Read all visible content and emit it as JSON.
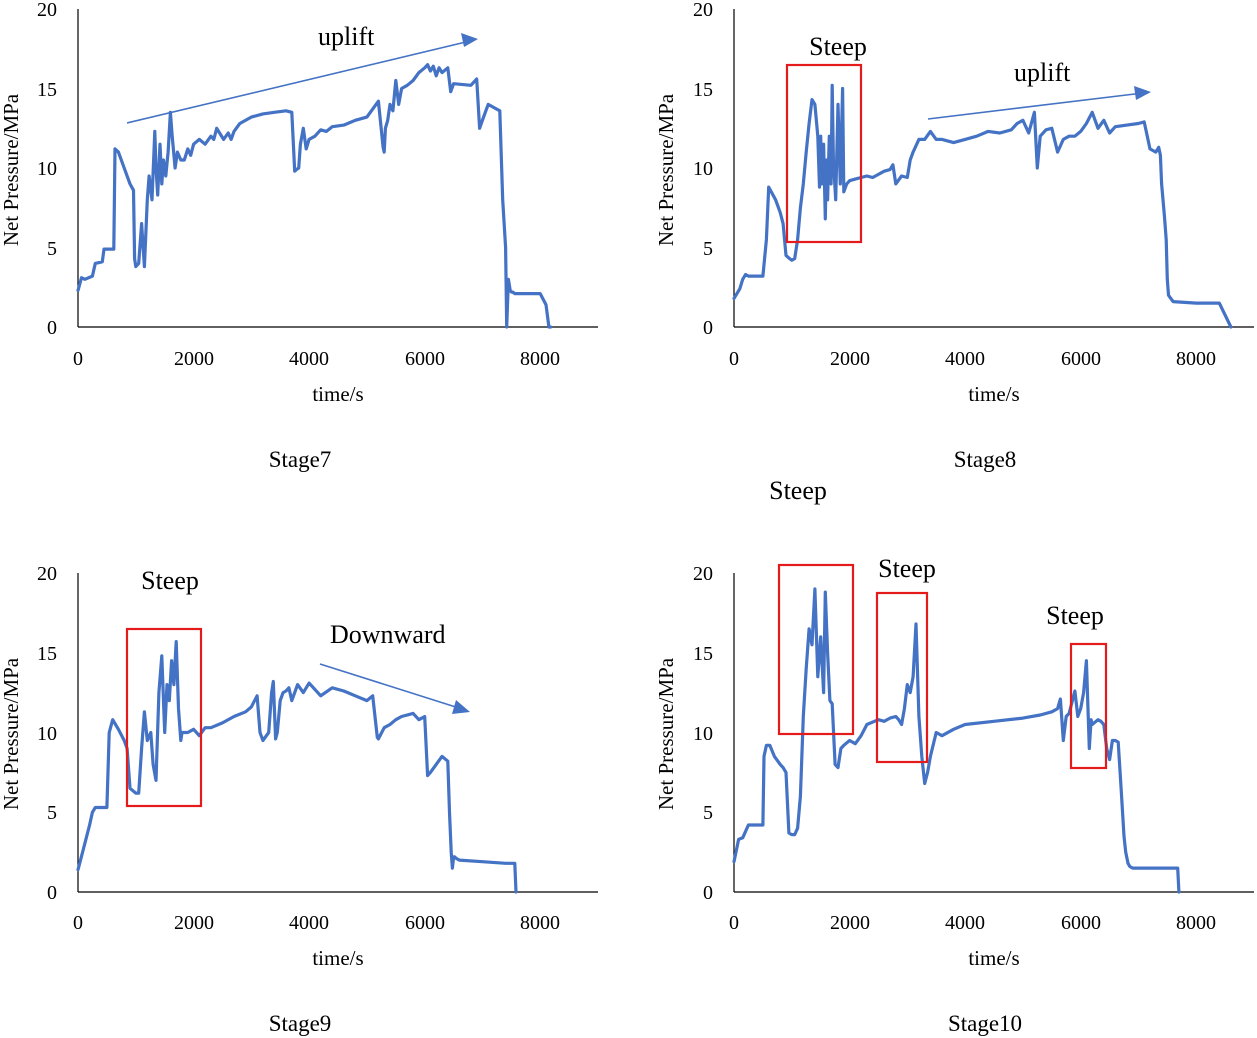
{
  "chart_data": [
    {
      "type": "line",
      "panel_title": "Stage7",
      "xlabel": "time/s",
      "ylabel": "Net Pressure/MPa",
      "xlim": [
        0,
        9000
      ],
      "ylim": [
        0,
        20
      ],
      "xticks": [
        0,
        2000,
        4000,
        6000,
        8000
      ],
      "yticks": [
        0,
        5,
        10,
        15,
        20
      ],
      "grid": false,
      "series": [
        {
          "name": "Net Pressure",
          "color": "#4472C4",
          "x": [
            0,
            60,
            120,
            250,
            300,
            420,
            450,
            620,
            640,
            700,
            800,
            900,
            960,
            980,
            1000,
            1050,
            1100,
            1150,
            1200,
            1230,
            1280,
            1330,
            1350,
            1380,
            1420,
            1450,
            1480,
            1520,
            1560,
            1600,
            1630,
            1680,
            1720,
            1780,
            1840,
            1900,
            1950,
            2000,
            2100,
            2200,
            2300,
            2350,
            2400,
            2450,
            2520,
            2600,
            2650,
            2700,
            2800,
            3000,
            3200,
            3400,
            3600,
            3700,
            3750,
            3780,
            3820,
            3850,
            3900,
            3950,
            4000,
            4100,
            4200,
            4300,
            4400,
            4600,
            4800,
            5000,
            5200,
            5280,
            5300,
            5320,
            5360,
            5400,
            5450,
            5500,
            5550,
            5600,
            5700,
            5800,
            5900,
            6000,
            6050,
            6100,
            6150,
            6200,
            6250,
            6300,
            6400,
            6450,
            6500,
            6800,
            6900,
            6950,
            7000,
            7050,
            7100,
            7200,
            7300,
            7350,
            7400,
            7420,
            7450,
            7480,
            7500,
            7520,
            7560,
            7600,
            8000,
            8100,
            8150,
            8180
          ],
          "y": [
            2.3,
            3.1,
            3.0,
            3.2,
            4.0,
            4.1,
            4.9,
            4.9,
            11.2,
            11.0,
            10.0,
            9.0,
            8.6,
            4.3,
            3.8,
            4.0,
            6.5,
            3.8,
            8.0,
            9.5,
            8.0,
            12.3,
            10.0,
            8.3,
            11.5,
            9.0,
            10.5,
            9.5,
            11.0,
            13.5,
            12.0,
            10.0,
            11.0,
            10.5,
            10.5,
            11.2,
            10.8,
            11.5,
            11.8,
            11.5,
            12.0,
            11.8,
            12.5,
            12.2,
            11.8,
            12.2,
            11.8,
            12.3,
            12.8,
            13.2,
            13.4,
            13.5,
            13.6,
            13.5,
            9.8,
            9.9,
            10.0,
            11.5,
            12.5,
            11.2,
            11.8,
            12.0,
            12.4,
            12.3,
            12.6,
            12.7,
            13.0,
            13.2,
            14.2,
            11.3,
            11.0,
            12.5,
            13.0,
            14.0,
            13.6,
            15.5,
            14.0,
            15.0,
            15.2,
            15.5,
            16.0,
            16.3,
            16.5,
            16.1,
            16.4,
            15.8,
            16.3,
            16.0,
            16.3,
            14.8,
            15.3,
            15.2,
            15.6,
            12.5,
            13.0,
            13.5,
            14.0,
            13.8,
            13.6,
            8.0,
            5.0,
            0.0,
            3.0,
            2.3,
            2.2,
            2.2,
            2.1,
            2.1,
            2.1,
            1.4,
            0.0,
            0.0
          ]
        }
      ],
      "annotations": [
        {
          "text": "uplift",
          "kind": "arrow",
          "from": [
            850,
            12.9
          ],
          "to": [
            7100,
            18.3
          ]
        }
      ],
      "regions": []
    },
    {
      "type": "line",
      "panel_title": "Stage8",
      "xlabel": "time/s",
      "ylabel": "Net Pressure/MPa",
      "xlim": [
        0,
        9000
      ],
      "ylim": [
        0,
        20
      ],
      "xticks": [
        0,
        2000,
        4000,
        6000,
        8000
      ],
      "yticks": [
        0,
        5,
        10,
        15,
        20
      ],
      "grid": false,
      "series": [
        {
          "name": "Net Pressure",
          "color": "#4472C4",
          "x": [
            0,
            100,
            150,
            200,
            250,
            500,
            560,
            600,
            720,
            800,
            850,
            900,
            960,
            1000,
            1050,
            1100,
            1150,
            1200,
            1250,
            1300,
            1350,
            1400,
            1450,
            1480,
            1500,
            1520,
            1550,
            1580,
            1600,
            1620,
            1650,
            1680,
            1700,
            1720,
            1760,
            1800,
            1840,
            1880,
            1900,
            1950,
            2000,
            2100,
            2200,
            2300,
            2400,
            2500,
            2600,
            2700,
            2750,
            2800,
            2900,
            3000,
            3050,
            3100,
            3200,
            3300,
            3400,
            3500,
            3600,
            3800,
            4000,
            4200,
            4400,
            4600,
            4800,
            4900,
            5000,
            5100,
            5200,
            5250,
            5300,
            5400,
            5500,
            5600,
            5700,
            5800,
            5900,
            6000,
            6100,
            6200,
            6300,
            6400,
            6500,
            6600,
            6800,
            7000,
            7100,
            7200,
            7300,
            7350,
            7380,
            7400,
            7450,
            7480,
            7500,
            7520,
            7560,
            7600,
            8000,
            8400,
            8600
          ],
          "y": [
            1.8,
            2.4,
            3.0,
            3.3,
            3.2,
            3.2,
            5.5,
            8.8,
            8.0,
            7.2,
            6.5,
            4.5,
            4.3,
            4.2,
            4.3,
            5.5,
            7.5,
            9.0,
            11.0,
            12.8,
            14.3,
            14.0,
            12.0,
            8.8,
            12.0,
            9.0,
            11.5,
            6.8,
            10.5,
            8.0,
            12.0,
            9.0,
            15.2,
            10.5,
            8.0,
            14.0,
            9.0,
            15.0,
            8.5,
            9.0,
            9.2,
            9.3,
            9.4,
            9.5,
            9.4,
            9.6,
            9.8,
            9.9,
            10.2,
            9.0,
            9.5,
            9.4,
            10.5,
            11.0,
            11.8,
            11.8,
            12.3,
            11.8,
            11.8,
            11.6,
            11.8,
            12.0,
            12.3,
            12.2,
            12.4,
            12.8,
            13.0,
            12.2,
            13.5,
            10.0,
            12.0,
            12.4,
            12.5,
            11.0,
            11.8,
            12.0,
            12.0,
            12.3,
            12.8,
            13.5,
            12.5,
            13.0,
            12.2,
            12.6,
            12.7,
            12.8,
            12.9,
            11.2,
            11.0,
            11.3,
            10.8,
            9.0,
            7.0,
            5.5,
            3.0,
            2.0,
            1.8,
            1.6,
            1.5,
            1.5,
            0.0
          ]
        }
      ],
      "annotations": [
        {
          "text": "uplift",
          "kind": "arrow",
          "from": [
            3350,
            13.0
          ],
          "to": [
            7250,
            14.9
          ]
        },
        {
          "text": "Steep",
          "kind": "label"
        }
      ],
      "regions": [
        {
          "label": "Steep",
          "x_range": [
            920,
            2200
          ],
          "y_range": [
            5.3,
            16.5
          ]
        }
      ]
    },
    {
      "type": "line",
      "panel_title": "Stage9",
      "xlabel": "time/s",
      "ylabel": "Net Pressure/MPa",
      "xlim": [
        0,
        9000
      ],
      "ylim": [
        0,
        20
      ],
      "xticks": [
        0,
        2000,
        4000,
        6000,
        8000
      ],
      "yticks": [
        0,
        5,
        10,
        15,
        20
      ],
      "grid": false,
      "series": [
        {
          "name": "Net Pressure",
          "color": "#4472C4",
          "x": [
            0,
            80,
            150,
            200,
            250,
            300,
            500,
            540,
            600,
            700,
            800,
            850,
            900,
            1000,
            1050,
            1100,
            1150,
            1200,
            1260,
            1300,
            1350,
            1400,
            1450,
            1500,
            1540,
            1580,
            1620,
            1660,
            1700,
            1740,
            1780,
            1800,
            1900,
            2000,
            2100,
            2200,
            2300,
            2500,
            2700,
            2900,
            3000,
            3100,
            3150,
            3200,
            3300,
            3350,
            3380,
            3420,
            3450,
            3500,
            3550,
            3600,
            3650,
            3700,
            3800,
            3900,
            4000,
            4200,
            4400,
            4600,
            4800,
            5000,
            5100,
            5180,
            5200,
            5300,
            5400,
            5500,
            5600,
            5800,
            5900,
            6000,
            6050,
            6100,
            6200,
            6300,
            6400,
            6430,
            6460,
            6480,
            6500,
            6520,
            6550,
            6600,
            7000,
            7400,
            7560,
            7580
          ],
          "y": [
            1.4,
            2.5,
            3.5,
            4.2,
            5.0,
            5.3,
            5.3,
            10.0,
            10.8,
            10.2,
            9.5,
            9.0,
            6.5,
            6.2,
            6.2,
            9.0,
            11.3,
            9.5,
            10.0,
            8.0,
            7.0,
            12.5,
            14.8,
            10.0,
            13.0,
            12.0,
            14.5,
            13.0,
            15.7,
            11.5,
            9.5,
            10.0,
            10.0,
            10.2,
            9.8,
            10.3,
            10.3,
            10.6,
            11.0,
            11.3,
            11.6,
            12.3,
            10.0,
            9.5,
            10.0,
            12.5,
            13.2,
            9.6,
            10.0,
            12.0,
            12.5,
            12.6,
            12.8,
            12.0,
            13.0,
            12.5,
            13.1,
            12.3,
            12.8,
            12.6,
            12.3,
            12.0,
            12.3,
            9.7,
            9.6,
            10.3,
            10.5,
            10.8,
            11.0,
            11.2,
            10.8,
            11.0,
            7.3,
            7.5,
            8.0,
            8.5,
            8.2,
            5.0,
            2.5,
            1.5,
            2.2,
            2.2,
            2.1,
            2.0,
            1.9,
            1.8,
            1.8,
            0.0
          ]
        }
      ],
      "annotations": [
        {
          "text": "Downward",
          "kind": "arrow",
          "from": [
            4150,
            14.3
          ],
          "to": [
            6700,
            11.3
          ]
        },
        {
          "text": "Steep",
          "kind": "label"
        }
      ],
      "regions": [
        {
          "label": "Steep",
          "x_range": [
            850,
            2150
          ],
          "y_range": [
            5.4,
            16.5
          ]
        }
      ]
    },
    {
      "type": "line",
      "panel_title": "Stage10",
      "xlabel": "time/s",
      "ylabel": "Net Pressure/MPa",
      "xlim": [
        0,
        9000
      ],
      "ylim": [
        0,
        20
      ],
      "xticks": [
        0,
        2000,
        4000,
        6000,
        8000
      ],
      "yticks": [
        0,
        5,
        10,
        15,
        20
      ],
      "grid": false,
      "series": [
        {
          "name": "Net Pressure",
          "color": "#4472C4",
          "x": [
            0,
            80,
            150,
            250,
            500,
            520,
            560,
            620,
            700,
            800,
            850,
            900,
            950,
            1000,
            1050,
            1100,
            1150,
            1200,
            1250,
            1300,
            1350,
            1400,
            1450,
            1500,
            1550,
            1580,
            1620,
            1660,
            1700,
            1750,
            1800,
            1850,
            1900,
            2000,
            2100,
            2200,
            2300,
            2500,
            2600,
            2700,
            2800,
            2850,
            2900,
            2950,
            3000,
            3050,
            3100,
            3150,
            3200,
            3250,
            3300,
            3350,
            3400,
            3500,
            3600,
            3800,
            4000,
            4500,
            5000,
            5300,
            5500,
            5600,
            5650,
            5700,
            5750,
            5800,
            5900,
            5950,
            6000,
            6050,
            6100,
            6150,
            6180,
            6200,
            6300,
            6350,
            6400,
            6450,
            6500,
            6550,
            6600,
            6650,
            6700,
            6750,
            6780,
            6820,
            6850,
            6900,
            7000,
            7600,
            7680,
            7700
          ],
          "y": [
            1.9,
            3.3,
            3.4,
            4.2,
            4.2,
            8.5,
            9.2,
            9.2,
            8.5,
            8.0,
            7.8,
            7.5,
            3.7,
            3.6,
            3.6,
            4.0,
            6.0,
            11.0,
            14.0,
            16.5,
            15.5,
            19.0,
            13.5,
            16.0,
            12.5,
            18.8,
            15.0,
            12.0,
            11.8,
            8.0,
            7.8,
            9.0,
            9.2,
            9.5,
            9.3,
            9.8,
            10.5,
            10.8,
            10.7,
            10.9,
            11.0,
            10.8,
            10.5,
            11.5,
            13.0,
            12.5,
            13.5,
            16.8,
            11.0,
            8.5,
            6.8,
            7.5,
            8.5,
            10.0,
            9.8,
            10.2,
            10.5,
            10.7,
            10.9,
            11.1,
            11.3,
            11.5,
            12.1,
            9.5,
            11.0,
            11.2,
            12.6,
            11.0,
            11.5,
            12.5,
            14.5,
            9.0,
            10.8,
            10.5,
            10.8,
            10.7,
            10.5,
            9.0,
            8.3,
            9.5,
            9.5,
            9.4,
            6.5,
            3.5,
            2.5,
            1.8,
            1.6,
            1.5,
            1.5,
            1.5,
            1.5,
            0.0
          ]
        }
      ],
      "annotations": [],
      "regions": [
        {
          "label": "Steep",
          "x_range": [
            780,
            2040
          ],
          "y_range": [
            9.8,
            20.5
          ]
        },
        {
          "label": "Steep",
          "x_range": [
            2480,
            3350
          ],
          "y_range": [
            8.1,
            18.8
          ]
        },
        {
          "label": "Steep",
          "x_range": [
            5820,
            6420
          ],
          "y_range": [
            7.8,
            15.6
          ]
        }
      ]
    }
  ]
}
